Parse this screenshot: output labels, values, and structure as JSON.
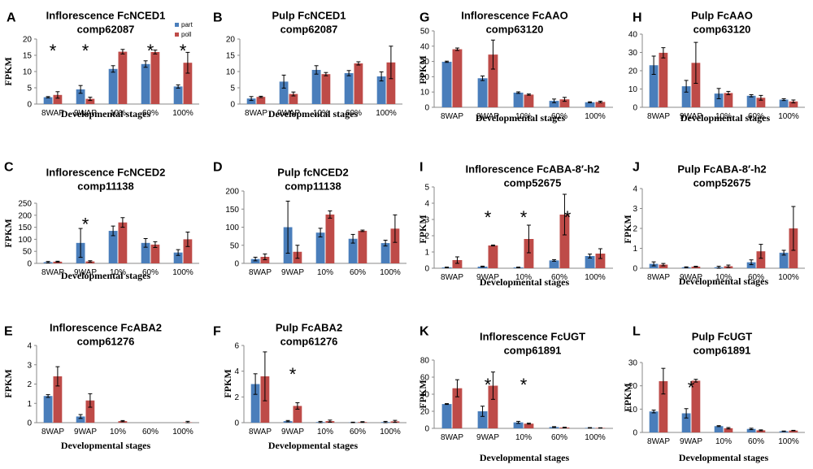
{
  "figure": {
    "legend": [
      {
        "label": "part",
        "color": "#4a7ebb"
      },
      {
        "label": "poll",
        "color": "#be4b48"
      }
    ],
    "colors": {
      "part": "#4a7ebb",
      "poll": "#be4b48",
      "axis": "#888888"
    }
  },
  "chart_data": [
    {
      "type": "bar",
      "panel": "A",
      "title": "Inflorescence FcNCED1",
      "subtitle": "comp62087",
      "categories": [
        "8WAP",
        "9WAP",
        "10%",
        "60%",
        "100%"
      ],
      "xlabel": "Developmental stages",
      "ylabel": "FPKM",
      "ylim": [
        0,
        20
      ],
      "yticks": [
        0,
        5,
        10,
        15,
        20
      ],
      "series": [
        {
          "name": "part",
          "values": [
            2.1,
            4.5,
            10.8,
            12.3,
            5.4
          ],
          "errors": [
            0.2,
            1.2,
            1.0,
            1.0,
            0.5
          ]
        },
        {
          "name": "poll",
          "values": [
            2.8,
            1.6,
            16.1,
            16.0,
            12.7
          ],
          "errors": [
            1.0,
            0.5,
            0.7,
            0.6,
            3.2
          ]
        }
      ],
      "significant": [
        0,
        1,
        3,
        4
      ],
      "significance_mark": "*"
    },
    {
      "type": "bar",
      "panel": "B",
      "title": "Pulp FcNCED1",
      "subtitle": "comp62087",
      "categories": [
        "8WAP",
        "9WAP",
        "10%",
        "60%",
        "100%"
      ],
      "xlabel": "Developmental stages",
      "ylabel": "",
      "ylim": [
        0,
        20
      ],
      "yticks": [
        0,
        5,
        10,
        15,
        20
      ],
      "series": [
        {
          "name": "part",
          "values": [
            1.7,
            6.9,
            10.5,
            9.5,
            8.5
          ],
          "errors": [
            0.6,
            2.0,
            1.3,
            0.8,
            1.4
          ]
        },
        {
          "name": "poll",
          "values": [
            2.2,
            3.1,
            9.2,
            12.5,
            12.8
          ],
          "errors": [
            0.2,
            0.6,
            0.5,
            0.5,
            5.0
          ]
        }
      ],
      "significant": [],
      "significance_mark": "*"
    },
    {
      "type": "bar",
      "panel": "G",
      "title": "Inflorescence FcAAO",
      "subtitle": "comp63120",
      "categories": [
        "8WAP",
        "9WAP",
        "10%",
        "60%",
        "100%"
      ],
      "xlabel": "Developmental stages",
      "ylabel": "FPKM",
      "ylim": [
        0,
        50
      ],
      "yticks": [
        0,
        10,
        20,
        30,
        40,
        50
      ],
      "series": [
        {
          "name": "part",
          "values": [
            29.8,
            19.0,
            9.6,
            4.2,
            3.3
          ],
          "errors": [
            0.4,
            1.5,
            0.5,
            1.2,
            0.3
          ]
        },
        {
          "name": "poll",
          "values": [
            38.0,
            34.5,
            8.3,
            5.2,
            3.5
          ],
          "errors": [
            0.8,
            9.5,
            0.4,
            1.3,
            0.5
          ]
        }
      ],
      "significant": [],
      "significance_mark": "*"
    },
    {
      "type": "bar",
      "panel": "H",
      "title": "Pulp FcAAO",
      "subtitle": "comp63120",
      "categories": [
        "8WAP",
        "9WAP",
        "10%",
        "60%",
        "100%"
      ],
      "xlabel": "Developmental stages",
      "ylabel": "",
      "ylim": [
        0,
        40
      ],
      "yticks": [
        0,
        10,
        20,
        30,
        40
      ],
      "series": [
        {
          "name": "part",
          "values": [
            23.0,
            11.5,
            7.5,
            6.3,
            4.2
          ],
          "errors": [
            5.0,
            3.2,
            2.8,
            0.6,
            0.5
          ]
        },
        {
          "name": "poll",
          "values": [
            29.8,
            24.3,
            7.8,
            5.2,
            3.2
          ],
          "errors": [
            2.8,
            11.2,
            0.9,
            1.3,
            0.8
          ]
        }
      ],
      "significant": [],
      "significance_mark": "*"
    },
    {
      "type": "bar",
      "panel": "C",
      "title": "Inflorescence FcNCED2",
      "subtitle": "comp11138",
      "categories": [
        "8WAP",
        "9WAP",
        "10%",
        "60%",
        "100%"
      ],
      "xlabel": "Developmental stages",
      "ylabel": "FPKM",
      "ylim": [
        0,
        250
      ],
      "yticks": [
        0,
        50,
        100,
        150,
        200,
        250
      ],
      "series": [
        {
          "name": "part",
          "values": [
            5,
            85,
            135,
            85,
            45
          ],
          "errors": [
            3,
            60,
            20,
            18,
            12
          ]
        },
        {
          "name": "poll",
          "values": [
            7,
            8,
            170,
            78,
            100
          ],
          "errors": [
            2,
            3,
            20,
            12,
            30
          ]
        }
      ],
      "significant": [
        1
      ],
      "significance_mark": "*"
    },
    {
      "type": "bar",
      "panel": "D",
      "title": "Pulp fcNCED2",
      "subtitle": "comp11138",
      "categories": [
        "8WAP",
        "9WAP",
        "10%",
        "60%",
        "100%"
      ],
      "xlabel": "",
      "ylabel": "",
      "ylim": [
        0,
        200
      ],
      "yticks": [
        0,
        50,
        100,
        150,
        200
      ],
      "series": [
        {
          "name": "part",
          "values": [
            12,
            100,
            85,
            68,
            56
          ],
          "errors": [
            5,
            72,
            12,
            12,
            8
          ]
        },
        {
          "name": "poll",
          "values": [
            18,
            32,
            135,
            90,
            96
          ],
          "errors": [
            8,
            18,
            10,
            2,
            38
          ]
        }
      ],
      "significant": [],
      "significance_mark": "*"
    },
    {
      "type": "bar",
      "panel": "I",
      "title": "Inflorescence FcABA-8′-h2",
      "subtitle": "comp52675",
      "categories": [
        "8WAP",
        "9WAP",
        "10%",
        "60%",
        "100%"
      ],
      "xlabel": "Developmental stages",
      "ylabel": "FPKM",
      "ylim": [
        0,
        5
      ],
      "yticks": [
        0,
        1,
        2,
        3,
        4,
        5
      ],
      "series": [
        {
          "name": "part",
          "values": [
            0.05,
            0.1,
            0.05,
            0.48,
            0.75
          ],
          "errors": [
            0.02,
            0.03,
            0.02,
            0.05,
            0.12
          ]
        },
        {
          "name": "poll",
          "values": [
            0.5,
            1.4,
            1.8,
            3.3,
            0.9
          ],
          "errors": [
            0.2,
            0.03,
            0.85,
            1.25,
            0.3
          ]
        }
      ],
      "significant": [
        1,
        2,
        3
      ],
      "significance_mark": "*"
    },
    {
      "type": "bar",
      "panel": "J",
      "title": "Pulp FcABA-8′-h2",
      "subtitle": "comp52675",
      "categories": [
        "8WAP",
        "9WAP",
        "10%",
        "60%",
        "100%"
      ],
      "xlabel": "Developmental stages",
      "ylabel": "FPKM",
      "ylim": [
        0,
        4
      ],
      "yticks": [
        0,
        1,
        2,
        3,
        4
      ],
      "series": [
        {
          "name": "part",
          "values": [
            0.22,
            0.05,
            0.05,
            0.3,
            0.78
          ],
          "errors": [
            0.1,
            0.02,
            0.05,
            0.12,
            0.12
          ]
        },
        {
          "name": "poll",
          "values": [
            0.18,
            0.08,
            0.1,
            0.85,
            2.0
          ],
          "errors": [
            0.06,
            0.02,
            0.06,
            0.35,
            1.1
          ]
        }
      ],
      "significant": [],
      "significance_mark": "*"
    },
    {
      "type": "bar",
      "panel": "E",
      "title": "Inflorescence FcABA2",
      "subtitle": "comp61276",
      "categories": [
        "8WAP",
        "9WAP",
        "10%",
        "60%",
        "100%"
      ],
      "xlabel": "Developmental stages",
      "ylabel": "FPKM",
      "ylim": [
        0,
        4
      ],
      "yticks": [
        0,
        1,
        2,
        3,
        4
      ],
      "series": [
        {
          "name": "part",
          "values": [
            1.38,
            0.32,
            0.0,
            0.0,
            0.0
          ],
          "errors": [
            0.07,
            0.1,
            0.0,
            0.0,
            0.0
          ]
        },
        {
          "name": "poll",
          "values": [
            2.4,
            1.15,
            0.08,
            0.0,
            0.02
          ],
          "errors": [
            0.5,
            0.35,
            0.03,
            0.0,
            0.05
          ]
        }
      ],
      "significant": [],
      "significance_mark": "*"
    },
    {
      "type": "bar",
      "panel": "F",
      "title": "Pulp FcABA2",
      "subtitle": "comp61276",
      "categories": [
        "8WAP",
        "9WAP",
        "10%",
        "60%",
        "100%"
      ],
      "xlabel": "Developmental stages",
      "ylabel": "FPKM",
      "ylim": [
        0,
        6
      ],
      "yticks": [
        0,
        2,
        4,
        6
      ],
      "series": [
        {
          "name": "part",
          "values": [
            3.0,
            0.12,
            0.05,
            0.02,
            0.05
          ],
          "errors": [
            0.8,
            0.05,
            0.05,
            0.02,
            0.05
          ]
        },
        {
          "name": "poll",
          "values": [
            3.6,
            1.3,
            0.12,
            0.05,
            0.1
          ],
          "errors": [
            1.9,
            0.25,
            0.08,
            0.03,
            0.08
          ]
        }
      ],
      "significant": [
        1
      ],
      "significance_mark": "*"
    },
    {
      "type": "bar",
      "panel": "K",
      "title": "Inflorescence FcUGT",
      "subtitle": "comp61891",
      "categories": [
        "8WAP",
        "9WAP",
        "10%",
        "60%",
        "100%"
      ],
      "xlabel": "Developmental stages",
      "ylabel": "FPKM",
      "ylim": [
        0,
        80
      ],
      "yticks": [
        0,
        20,
        40,
        60,
        80
      ],
      "series": [
        {
          "name": "part",
          "values": [
            28.5,
            20.0,
            7.0,
            1.5,
            0.6
          ],
          "errors": [
            0.5,
            6.0,
            1.2,
            0.5,
            0.3
          ]
        },
        {
          "name": "poll",
          "values": [
            47.0,
            50.0,
            5.5,
            1.0,
            0.5
          ],
          "errors": [
            10.0,
            16.0,
            0.6,
            0.4,
            0.2
          ]
        }
      ],
      "significant": [
        1,
        2
      ],
      "significance_mark": "*"
    },
    {
      "type": "bar",
      "panel": "L",
      "title": "Pulp FcUGT",
      "subtitle": "comp61891",
      "categories": [
        "8WAP",
        "9WAP",
        "10%",
        "60%",
        "100%"
      ],
      "xlabel": "Developmental stages",
      "ylabel": "FPKM",
      "ylim": [
        0,
        30
      ],
      "yticks": [
        0,
        10,
        20,
        30
      ],
      "series": [
        {
          "name": "part",
          "values": [
            9.0,
            8.2,
            2.7,
            1.5,
            0.5
          ],
          "errors": [
            0.6,
            2.0,
            0.2,
            0.3,
            0.1
          ]
        },
        {
          "name": "poll",
          "values": [
            22.0,
            22.2,
            1.8,
            0.9,
            0.8
          ],
          "errors": [
            5.5,
            0.6,
            0.3,
            0.2,
            0.1
          ]
        }
      ],
      "significant": [
        1
      ],
      "significance_mark": "*"
    }
  ]
}
